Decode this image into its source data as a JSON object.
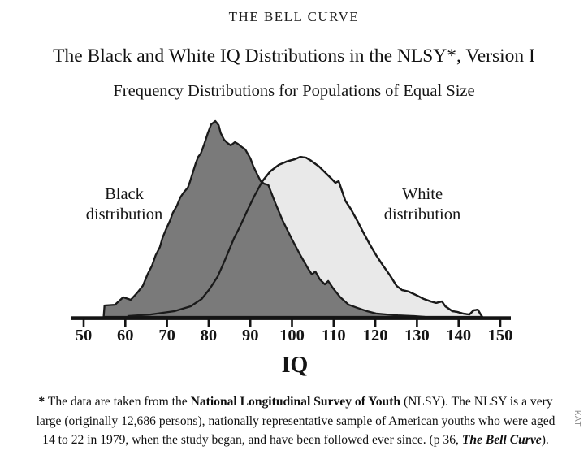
{
  "page": {
    "kicker": "THE BELL CURVE",
    "title": "The Black and White IQ Distributions in the NLSY*, Version I",
    "subtitle": "Frequency Distributions for Populations of Equal Size",
    "watermark": "KAT"
  },
  "chart_data": {
    "type": "area",
    "title": "The Black and White IQ Distributions in the NLSY*, Version I",
    "subtitle": "Frequency Distributions for Populations of Equal Size",
    "xlabel": "IQ",
    "ylabel": "",
    "x_range": [
      50,
      150
    ],
    "x_ticks": [
      50,
      60,
      70,
      80,
      90,
      100,
      110,
      120,
      130,
      140,
      150
    ],
    "y_units": "relative frequency, normalized so Black distribution peak = 100",
    "grid": false,
    "legend": "direct labels on plot",
    "axis_color": "#141414",
    "series": [
      {
        "name": "White distribution",
        "label_line1": "White",
        "label_line2": "distribution",
        "fill": "#e9e9e9",
        "outline": "#1a1a1a",
        "peak_iq": 102,
        "points": [
          [
            60.5,
            0.4
          ],
          [
            66,
            1.2
          ],
          [
            71.8,
            2.9
          ],
          [
            75.7,
            5.4
          ],
          [
            78.3,
            9.1
          ],
          [
            80.2,
            14.1
          ],
          [
            82.2,
            20.7
          ],
          [
            84.1,
            29.9
          ],
          [
            86.1,
            40.2
          ],
          [
            87.4,
            45.6
          ],
          [
            89.4,
            54.8
          ],
          [
            90.9,
            61.4
          ],
          [
            92.9,
            69.3
          ],
          [
            94.8,
            74.3
          ],
          [
            96.8,
            77.6
          ],
          [
            98.7,
            79.3
          ],
          [
            100.7,
            80.5
          ],
          [
            102,
            81.7
          ],
          [
            103.4,
            81.3
          ],
          [
            104.6,
            79.7
          ],
          [
            106.5,
            76.8
          ],
          [
            108.3,
            73
          ],
          [
            109.5,
            70.5
          ],
          [
            110.4,
            68.5
          ],
          [
            111.2,
            69.3
          ],
          [
            112.8,
            59.3
          ],
          [
            114.1,
            55.2
          ],
          [
            115.7,
            49
          ],
          [
            117.1,
            43.2
          ],
          [
            118.6,
            37.3
          ],
          [
            120.2,
            31.5
          ],
          [
            121.9,
            26.1
          ],
          [
            123.5,
            21.2
          ],
          [
            125.1,
            15.8
          ],
          [
            126.4,
            13.7
          ],
          [
            128,
            12.9
          ],
          [
            129.7,
            11.2
          ],
          [
            131.7,
            9.1
          ],
          [
            133.3,
            7.9
          ],
          [
            134.6,
            7.1
          ],
          [
            136,
            7.9
          ],
          [
            136.8,
            5.4
          ],
          [
            138.5,
            2.9
          ],
          [
            139.7,
            2.5
          ],
          [
            141,
            1.7
          ],
          [
            142.6,
            1.2
          ],
          [
            143.6,
            3.3
          ],
          [
            144.6,
            3.7
          ],
          [
            145.3,
            1.2
          ],
          [
            145.7,
            0
          ]
        ]
      },
      {
        "name": "Black distribution",
        "label_line1": "Black",
        "label_line2": "distribution",
        "fill": "#7a7a7a",
        "outline": "#1a1a1a",
        "peak_iq": 82,
        "points": [
          [
            54.8,
            0
          ],
          [
            55,
            5.8
          ],
          [
            57.5,
            6.2
          ],
          [
            59.5,
            10
          ],
          [
            61.3,
            8.7
          ],
          [
            62.9,
            12.4
          ],
          [
            64.2,
            15.8
          ],
          [
            65.4,
            22
          ],
          [
            66.4,
            26.1
          ],
          [
            67.3,
            31.5
          ],
          [
            68.3,
            35.7
          ],
          [
            68.9,
            40.2
          ],
          [
            69.7,
            44.4
          ],
          [
            70.7,
            49
          ],
          [
            71.4,
            53.1
          ],
          [
            72.4,
            56.8
          ],
          [
            73.2,
            61
          ],
          [
            74,
            63.5
          ],
          [
            75,
            66
          ],
          [
            75.5,
            68.9
          ],
          [
            76.3,
            74.3
          ],
          [
            76.9,
            78.4
          ],
          [
            77.5,
            81.7
          ],
          [
            78.1,
            83.4
          ],
          [
            78.9,
            88
          ],
          [
            79.8,
            93.8
          ],
          [
            80.6,
            98.3
          ],
          [
            81.6,
            100
          ],
          [
            82.4,
            97.9
          ],
          [
            82.9,
            93.8
          ],
          [
            83.7,
            90.5
          ],
          [
            84.5,
            88.8
          ],
          [
            85.3,
            87.6
          ],
          [
            86.3,
            89.2
          ],
          [
            87,
            88.4
          ],
          [
            88,
            86.7
          ],
          [
            88.8,
            85.5
          ],
          [
            90,
            81
          ],
          [
            90.7,
            77
          ],
          [
            91.7,
            72.6
          ],
          [
            92.5,
            69.3
          ],
          [
            93.3,
            68
          ],
          [
            94.3,
            67.4
          ],
          [
            96,
            58.1
          ],
          [
            97.8,
            49
          ],
          [
            99.9,
            40
          ],
          [
            101.9,
            32
          ],
          [
            103.8,
            24.9
          ],
          [
            104.8,
            21.6
          ],
          [
            105.6,
            23.2
          ],
          [
            106.7,
            19.1
          ],
          [
            107.9,
            16.6
          ],
          [
            108.7,
            18.3
          ],
          [
            109.9,
            14.5
          ],
          [
            111.6,
            10
          ],
          [
            113.6,
            6.2
          ],
          [
            115.7,
            4.6
          ],
          [
            118,
            2.9
          ],
          [
            120.2,
            1.7
          ],
          [
            122.9,
            1.2
          ],
          [
            125.4,
            0.8
          ],
          [
            129.3,
            0.4
          ],
          [
            131.9,
            0
          ]
        ]
      }
    ]
  },
  "footnote": {
    "star": "*",
    "line1_pre": " The data are taken from the ",
    "line1_bold": "National Longitudinal Survey of Youth",
    "line1_post": " (NLSY). The NLSY is a very",
    "line2": "large (originally 12,686 persons), nationally representative sample of American youths who were aged",
    "line3_pre": "14 to 22 in 1979, when the study began, and have been followed ever since. (p 36, ",
    "line3_bolditalic": "The Bell Curve",
    "line3_post": ")."
  }
}
